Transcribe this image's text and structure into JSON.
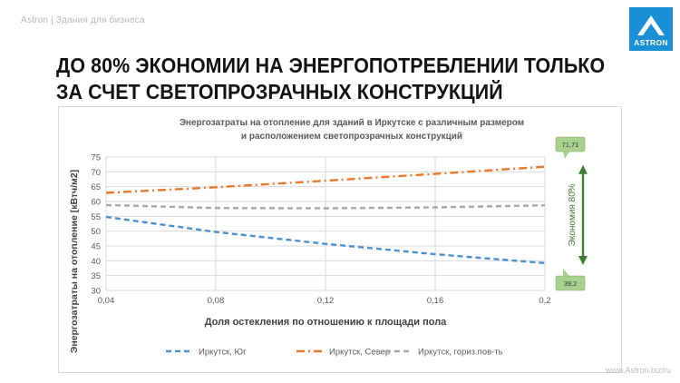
{
  "header": {
    "caption": "Astron | Здания для бизнеса",
    "logo_text": "ASTRON"
  },
  "headline": {
    "line1": "ДО 80% ЭКОНОМИИ НА ЭНЕРГОПОТРЕБЛЕНИИ ТОЛЬКО",
    "line2": "ЗА СЧЕТ СВЕТОПРОЗРАЧНЫХ КОНСТРУКЦИЙ"
  },
  "footer": {
    "url": "www.Astron.biz/ru"
  },
  "colors": {
    "south": "#4a90d0",
    "north": "#e8782c",
    "horizontal": "#a6a6a6",
    "arrow": "#3e7c31",
    "badge_fill": "#a9d18e",
    "logo": "#1a8fd6"
  },
  "chart_data": {
    "type": "line",
    "title_line1": "Энергозатраты на отопление для зданий в Иркутске с различным размером",
    "title_line2": "и расположением светопрозрачных конструкций",
    "xlabel": "Доля остекления по отношению к площади пола",
    "ylabel": "Энергозатраты на отопление [кВтч/м2]",
    "xlim": [
      0.04,
      0.2
    ],
    "ylim": [
      30,
      75
    ],
    "x_ticks": [
      "0,04",
      "0,08",
      "0,12",
      "0,16",
      "0,2"
    ],
    "y_ticks": [
      "30",
      "35",
      "40",
      "45",
      "50",
      "55",
      "60",
      "65",
      "70",
      "75"
    ],
    "grid": true,
    "legend_position": "bottom",
    "series": [
      {
        "name": "Иркутск, Юг",
        "color": "#4a90d0",
        "dash": "dash",
        "x": [
          0.04,
          0.08,
          0.12,
          0.16,
          0.2
        ],
        "y": [
          54.8,
          49.7,
          45.7,
          42.2,
          39.2
        ]
      },
      {
        "name": "Иркутск, Север",
        "color": "#e8782c",
        "dash": "dashdot",
        "x": [
          0.04,
          0.08,
          0.12,
          0.16,
          0.2
        ],
        "y": [
          62.9,
          64.8,
          67.0,
          69.3,
          71.71
        ]
      },
      {
        "name": "Иркутск, гориз.пов-ть",
        "color": "#a6a6a6",
        "dash": "dash",
        "x": [
          0.04,
          0.08,
          0.12,
          0.16,
          0.2
        ],
        "y": [
          58.8,
          57.8,
          57.7,
          58.0,
          58.7
        ]
      }
    ],
    "annotations": {
      "top_value": "71,71",
      "bottom_value": "39,2",
      "savings_label": "Экономия 80%"
    }
  }
}
